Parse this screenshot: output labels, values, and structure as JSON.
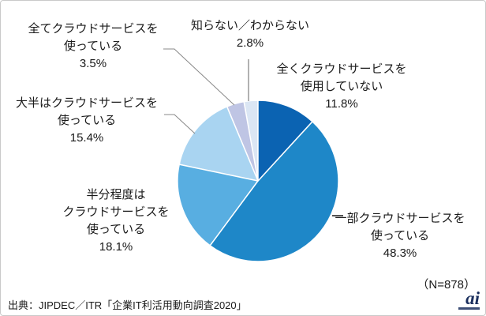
{
  "chart_data": {
    "type": "pie",
    "title": "",
    "unit": "%",
    "start_angle_deg_from_top_clockwise": 0,
    "segments": [
      {
        "label": "全くクラウドサービスを使用していない",
        "value": 11.8,
        "color": "#0b63b2"
      },
      {
        "label": "一部クラウドサービスを使っている",
        "value": 48.3,
        "color": "#1e87c8"
      },
      {
        "label": "半分程度はクラウドサービスを使っている",
        "value": 18.1,
        "color": "#58aee1"
      },
      {
        "label": "大半はクラウドサービスを使っている",
        "value": 15.4,
        "color": "#a9d4f1"
      },
      {
        "label": "全てクラウドサービスを使っている",
        "value": 3.5,
        "color": "#bfc5e4"
      },
      {
        "label": "知らない／わからない",
        "value": 2.8,
        "color": "#dbe6f4"
      }
    ],
    "sample_size": "（N=878）",
    "source": "出典：JIPDEC／ITR「企業IT利活用動向調査2020」"
  },
  "callouts": {
    "zente": {
      "line1": "全てクラウドサービスを",
      "line2": "使っている",
      "pct": "3.5%"
    },
    "shiranai": {
      "line1": "知らない／わからない",
      "pct": "2.8%"
    },
    "mattaku": {
      "line1": "全くクラウドサービスを",
      "line2": "使用していない",
      "pct": "11.8%"
    },
    "taihan": {
      "line1": "大半はクラウドサービスを",
      "line2": "使っている",
      "pct": "15.4%"
    },
    "hanbun": {
      "line1": "半分程度は",
      "line2": "クラウドサービスを",
      "line3": "使っている",
      "pct": "18.1%"
    },
    "ichibu": {
      "line1": "一部クラウドサービスを",
      "line2": "使っている",
      "pct": "48.3%"
    }
  },
  "footer": {
    "n_label": "（N=878）",
    "source": "出典：JIPDEC／ITR「企業IT利活用動向調査2020」",
    "logo_text": "ai"
  }
}
